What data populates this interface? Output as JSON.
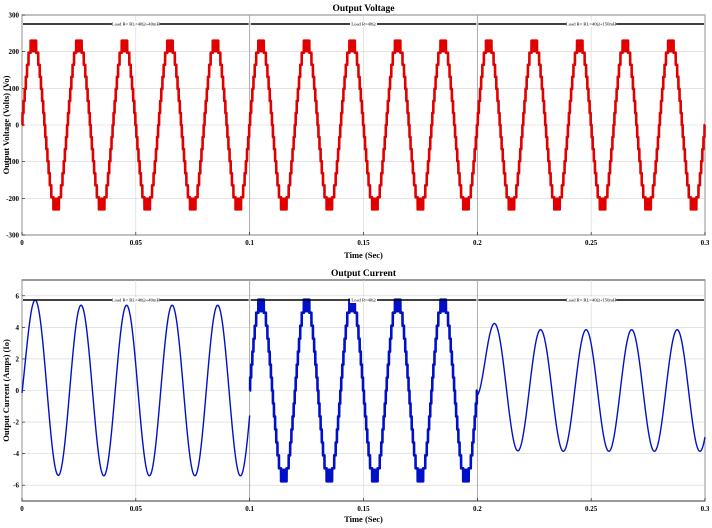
{
  "chart_data": [
    {
      "type": "line",
      "title": "Output Voltage",
      "xlabel": "Time (Sec)",
      "ylabel": "Output Voltage (Volts) (Vo)",
      "xlim": [
        0,
        0.3
      ],
      "ylim": [
        -300,
        300
      ],
      "xticks": [
        0,
        0.05,
        0.1,
        0.15,
        0.2,
        0.25,
        0.3
      ],
      "xtick_labels": [
        "0",
        "0.05",
        "0.1",
        "0.15",
        "0.2",
        "0.25",
        "0.3"
      ],
      "yticks": [
        -300,
        -200,
        -100,
        0,
        100,
        200,
        300
      ],
      "ytick_labels": [
        "-300",
        "-200",
        "-100",
        "0",
        "100",
        "200",
        "300"
      ],
      "grid": true,
      "color": "#e00000",
      "segment_boundaries": [
        0.1,
        0.2
      ],
      "segments": [
        {
          "label": "Load R= RL=40Ω+40mH",
          "t_start": 0,
          "t_end": 0.1,
          "waveform": "staircase",
          "amplitude": 230,
          "frequency": 50,
          "style": "thick"
        },
        {
          "label": "Load R=40Ω",
          "t_start": 0.1,
          "t_end": 0.2,
          "waveform": "staircase",
          "amplitude": 230,
          "frequency": 50,
          "style": "thick"
        },
        {
          "label": "Load R= RL=40Ω+150mH",
          "t_start": 0.2,
          "t_end": 0.3,
          "waveform": "staircase",
          "amplitude": 230,
          "frequency": 50,
          "style": "thick"
        }
      ]
    },
    {
      "type": "line",
      "title": "Output Current",
      "xlabel": "Time (Sec)",
      "ylabel": "Output Current (Amps) (Io)",
      "xlim": [
        0,
        0.3
      ],
      "ylim": [
        -7,
        7
      ],
      "xticks": [
        0,
        0.05,
        0.1,
        0.15,
        0.2,
        0.25,
        0.3
      ],
      "xtick_labels": [
        "0",
        "0.05",
        "0.1",
        "0.15",
        "0.2",
        "0.25",
        "0.3"
      ],
      "yticks": [
        -6,
        -4,
        -2,
        0,
        2,
        4,
        6
      ],
      "ytick_labels": [
        "-6",
        "-4",
        "-2",
        "0",
        "2",
        "4",
        "6"
      ],
      "grid": true,
      "color": "#0010c8",
      "segment_boundaries": [
        0.1,
        0.2
      ],
      "segments": [
        {
          "label": "Load R= RL=40Ω+40mH",
          "t_start": 0,
          "t_end": 0.1,
          "waveform": "sine",
          "amplitude": 5.4,
          "frequency": 50,
          "phase_lag_deg": 17,
          "style": "thin"
        },
        {
          "label": "Load R=40Ω",
          "t_start": 0.1,
          "t_end": 0.2,
          "waveform": "staircase",
          "amplitude": 5.75,
          "frequency": 50,
          "style": "thick"
        },
        {
          "label": "Load R= RL=40Ω+150mH",
          "t_start": 0.2,
          "t_end": 0.3,
          "waveform": "sine",
          "amplitude": 3.85,
          "frequency": 50,
          "phase_lag_deg": 50,
          "style": "thin"
        }
      ]
    }
  ]
}
